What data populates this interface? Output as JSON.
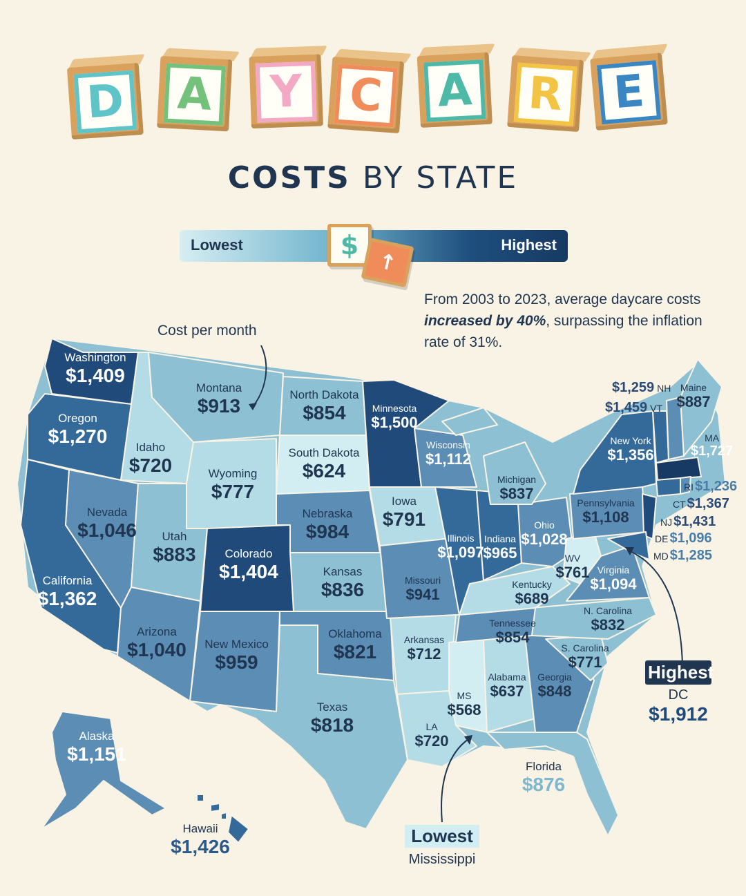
{
  "title": {
    "letters": [
      {
        "char": "D",
        "color": "#5ec4c8"
      },
      {
        "char": "A",
        "color": "#73c17a"
      },
      {
        "char": "Y",
        "color": "#f3a8c3"
      },
      {
        "char": "C",
        "color": "#f08c5a"
      },
      {
        "char": "A",
        "color": "#4fb9a7"
      },
      {
        "char": "R",
        "color": "#f3c443"
      },
      {
        "char": "E",
        "color": "#3a86c2"
      }
    ],
    "subtitle_bold": "COSTS",
    "subtitle_rest": " BY STATE"
  },
  "legend": {
    "lowest": "Lowest",
    "highest": "Highest",
    "dollar": "$",
    "arrow": "↑"
  },
  "note": {
    "pre": "From 2003 to 2023, average daycare costs ",
    "emph": "increased by 40%",
    "post": ", surpassing the inflation rate of 31%."
  },
  "cost_label": "Cost per month",
  "colors": {
    "darkest": "#1f4a7a",
    "dark": "#346a9a",
    "mid": "#5b8db5",
    "light": "#8ec0d3",
    "lighter": "#b3dce6",
    "lightest": "#d3eef3",
    "text": "#1f3550"
  },
  "states": [
    {
      "name": "Washington",
      "value": "$1,409"
    },
    {
      "name": "Oregon",
      "value": "$1,270"
    },
    {
      "name": "California",
      "value": "$1,362"
    },
    {
      "name": "Nevada",
      "value": "$1,046"
    },
    {
      "name": "Idaho",
      "value": "$720"
    },
    {
      "name": "Montana",
      "value": "$913"
    },
    {
      "name": "Wyoming",
      "value": "$777"
    },
    {
      "name": "Utah",
      "value": "$883"
    },
    {
      "name": "Arizona",
      "value": "$1,040"
    },
    {
      "name": "Colorado",
      "value": "$1,404"
    },
    {
      "name": "New Mexico",
      "value": "$959"
    },
    {
      "name": "North Dakota",
      "value": "$854"
    },
    {
      "name": "South Dakota",
      "value": "$624"
    },
    {
      "name": "Nebraska",
      "value": "$984"
    },
    {
      "name": "Kansas",
      "value": "$836"
    },
    {
      "name": "Oklahoma",
      "value": "$821"
    },
    {
      "name": "Texas",
      "value": "$818"
    },
    {
      "name": "Minnesota",
      "value": "$1,500"
    },
    {
      "name": "Iowa",
      "value": "$791"
    },
    {
      "name": "Missouri",
      "value": "$941"
    },
    {
      "name": "Arkansas",
      "value": "$712"
    },
    {
      "name": "LA",
      "value": "$720"
    },
    {
      "name": "Wisconsin",
      "value": "$1,112"
    },
    {
      "name": "Illinois",
      "value": "$1,097"
    },
    {
      "name": "MS",
      "value": "$568"
    },
    {
      "name": "Michigan",
      "value": "$837"
    },
    {
      "name": "Indiana",
      "value": "$965"
    },
    {
      "name": "Ohio",
      "value": "$1,028"
    },
    {
      "name": "Kentucky",
      "value": "$689"
    },
    {
      "name": "Tennessee",
      "value": "$854"
    },
    {
      "name": "Alabama",
      "value": "$637"
    },
    {
      "name": "Georgia",
      "value": "$848"
    },
    {
      "name": "Florida",
      "value": "$876"
    },
    {
      "name": "S. Carolina",
      "value": "$771"
    },
    {
      "name": "N. Carolina",
      "value": "$832"
    },
    {
      "name": "Virginia",
      "value": "$1,094"
    },
    {
      "name": "WV",
      "value": "$761"
    },
    {
      "name": "Pennsylvania",
      "value": "$1,108"
    },
    {
      "name": "New York",
      "value": "$1,356"
    },
    {
      "name": "Maine",
      "value": "$887"
    },
    {
      "name": "Alaska",
      "value": "$1,151"
    },
    {
      "name": "Hawaii",
      "value": "$1,426"
    }
  ],
  "northeast": [
    {
      "name": "NH",
      "value": "$1,259"
    },
    {
      "name": "VT",
      "value": "$1,459"
    },
    {
      "name": "MA",
      "value": "$1,727"
    },
    {
      "name": "RI",
      "value": "$1,236"
    },
    {
      "name": "CT",
      "value": "$1,367"
    },
    {
      "name": "NJ",
      "value": "$1,431"
    },
    {
      "name": "DE",
      "value": "$1,096"
    },
    {
      "name": "MD",
      "value": "$1,285"
    }
  ],
  "highest": {
    "label": "Highest",
    "name": "DC",
    "value": "$1,912"
  },
  "lowest": {
    "label": "Lowest",
    "name": "Mississippi"
  }
}
